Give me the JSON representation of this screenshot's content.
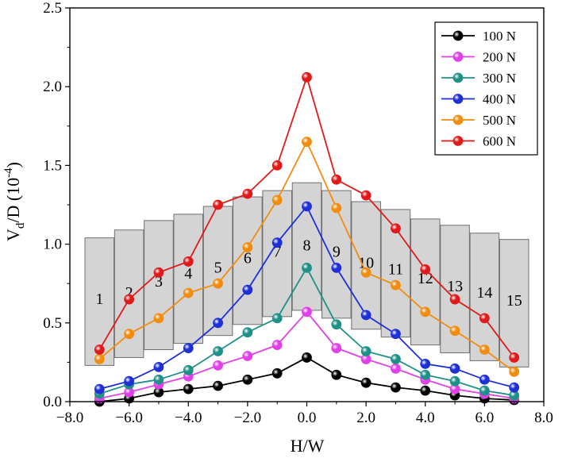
{
  "chart_data": {
    "type": "line",
    "title": "",
    "xlabel": "H/W",
    "ylabel": "V_d/D (10^-4)",
    "ylabel_parts": {
      "main": "V",
      "sub": "d",
      "mid": "/D (10",
      "sup": "-4",
      "end": ")"
    },
    "xlim": [
      -8.0,
      8.0
    ],
    "ylim": [
      0.0,
      2.5
    ],
    "x_ticks": [
      -8.0,
      -6.0,
      -4.0,
      -2.0,
      0.0,
      2.0,
      4.0,
      6.0,
      8.0
    ],
    "x_tick_labels": [
      "−8.0",
      "−6.0",
      "−4.0",
      "−2.0",
      "0.0",
      "2.0",
      "4.0",
      "6.0",
      "8.0"
    ],
    "y_ticks": [
      0.0,
      0.5,
      1.0,
      1.5,
      2.0,
      2.5
    ],
    "y_tick_labels": [
      "0.0",
      "0.5",
      "1.0",
      "1.5",
      "2.0",
      "2.5"
    ],
    "grid": false,
    "legend_position": "top-right",
    "x": [
      -7,
      -6,
      -5,
      -4,
      -3,
      -2,
      -1,
      0,
      1,
      2,
      3,
      4,
      5,
      6,
      7
    ],
    "series": [
      {
        "name": "100 N",
        "color": "#000000",
        "values": [
          0.0,
          0.02,
          0.06,
          0.08,
          0.1,
          0.14,
          0.18,
          0.28,
          0.17,
          0.12,
          0.09,
          0.07,
          0.04,
          0.02,
          0.01
        ]
      },
      {
        "name": "200 N",
        "color": "#e040e8",
        "values": [
          0.02,
          0.06,
          0.11,
          0.16,
          0.23,
          0.29,
          0.36,
          0.57,
          0.34,
          0.27,
          0.21,
          0.14,
          0.08,
          0.05,
          0.02
        ]
      },
      {
        "name": "300 N",
        "color": "#1f9088",
        "values": [
          0.05,
          0.11,
          0.14,
          0.2,
          0.32,
          0.44,
          0.53,
          0.85,
          0.49,
          0.32,
          0.27,
          0.17,
          0.13,
          0.07,
          0.04
        ]
      },
      {
        "name": "400 N",
        "color": "#1f2fd6",
        "values": [
          0.08,
          0.13,
          0.22,
          0.34,
          0.5,
          0.71,
          1.01,
          1.24,
          0.85,
          0.55,
          0.43,
          0.24,
          0.21,
          0.14,
          0.09
        ]
      },
      {
        "name": "500 N",
        "color": "#f28c0f",
        "values": [
          0.27,
          0.43,
          0.53,
          0.69,
          0.75,
          0.98,
          1.28,
          1.65,
          1.23,
          0.82,
          0.74,
          0.57,
          0.45,
          0.33,
          0.19
        ]
      },
      {
        "name": "600 N",
        "color": "#e01a1a",
        "values": [
          0.33,
          0.65,
          0.82,
          0.89,
          1.25,
          1.32,
          1.5,
          2.06,
          1.41,
          1.31,
          1.1,
          0.84,
          0.65,
          0.53,
          0.28
        ]
      }
    ],
    "regions": [
      {
        "label": "1",
        "center": -7,
        "ymin": 0.23,
        "ymax": 1.04,
        "label_y": 0.62
      },
      {
        "label": "2",
        "center": -6,
        "ymin": 0.28,
        "ymax": 1.09,
        "label_y": 0.66
      },
      {
        "label": "3",
        "center": -5,
        "ymin": 0.33,
        "ymax": 1.15,
        "label_y": 0.73
      },
      {
        "label": "4",
        "center": -4,
        "ymin": 0.37,
        "ymax": 1.19,
        "label_y": 0.78
      },
      {
        "label": "5",
        "center": -3,
        "ymin": 0.42,
        "ymax": 1.24,
        "label_y": 0.82
      },
      {
        "label": "6",
        "center": -2,
        "ymin": 0.49,
        "ymax": 1.3,
        "label_y": 0.88
      },
      {
        "label": "7",
        "center": -1,
        "ymin": 0.54,
        "ymax": 1.34,
        "label_y": 0.92
      },
      {
        "label": "8",
        "center": 0,
        "ymin": 0.58,
        "ymax": 1.39,
        "label_y": 0.96
      },
      {
        "label": "9",
        "center": 1,
        "ymin": 0.53,
        "ymax": 1.34,
        "label_y": 0.92
      },
      {
        "label": "10",
        "center": 2,
        "ymin": 0.46,
        "ymax": 1.27,
        "label_y": 0.85
      },
      {
        "label": "11",
        "center": 3,
        "ymin": 0.41,
        "ymax": 1.22,
        "label_y": 0.81
      },
      {
        "label": "12",
        "center": 4,
        "ymin": 0.36,
        "ymax": 1.16,
        "label_y": 0.75
      },
      {
        "label": "13",
        "center": 5,
        "ymin": 0.31,
        "ymax": 1.12,
        "label_y": 0.7
      },
      {
        "label": "14",
        "center": 6,
        "ymin": 0.26,
        "ymax": 1.07,
        "label_y": 0.66
      },
      {
        "label": "15",
        "center": 7,
        "ymin": 0.22,
        "ymax": 1.03,
        "label_y": 0.61
      }
    ],
    "region_style": {
      "fill": "#cccccc",
      "stroke": "#6f6f6f"
    }
  }
}
